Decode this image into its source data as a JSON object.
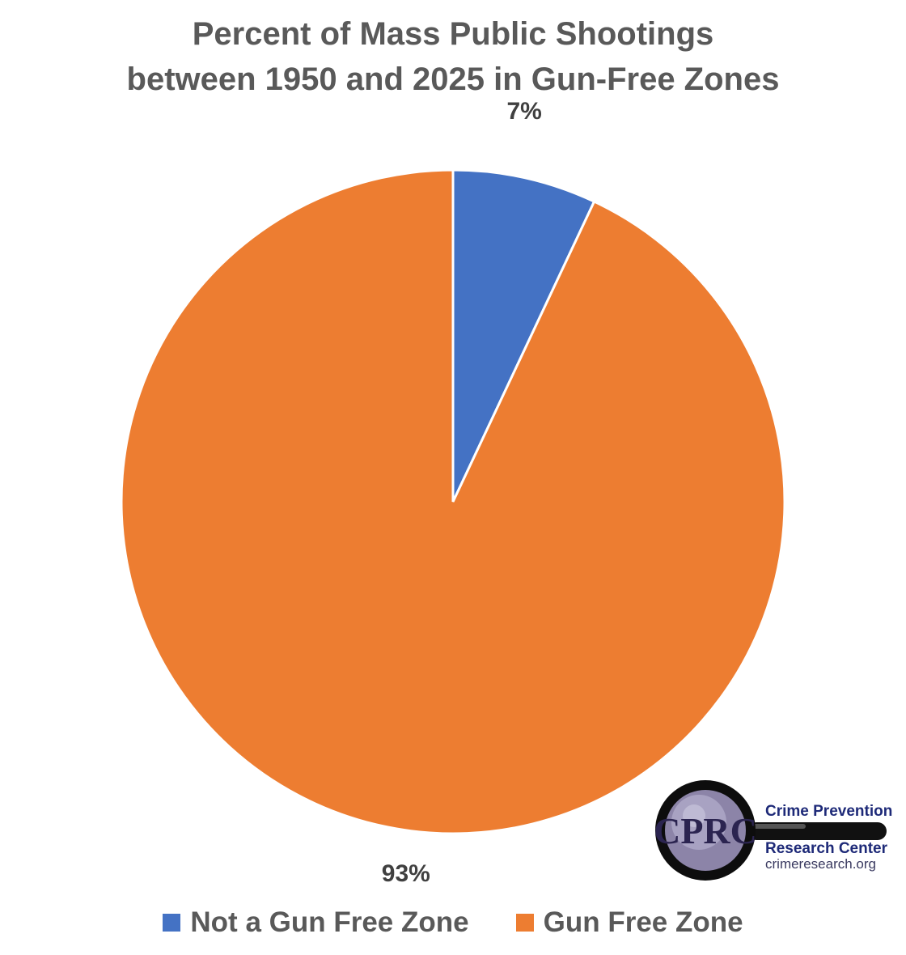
{
  "chart_data": {
    "type": "pie",
    "title_lines": [
      "Percent of Mass Public Shootings",
      "between 1950 and 2025 in Gun-Free Zones"
    ],
    "categories": [
      "Not a Gun Free Zone",
      "Gun Free Zone"
    ],
    "values": [
      7,
      93
    ],
    "data_labels": [
      "7%",
      "93%"
    ],
    "colors": [
      "#4472c4",
      "#ed7d31"
    ],
    "legend_placement": "bottom"
  },
  "logo": {
    "mark": "CPRC",
    "line1": "Crime Prevention",
    "line2": "Research Center",
    "url": "crimeresearch.org"
  }
}
